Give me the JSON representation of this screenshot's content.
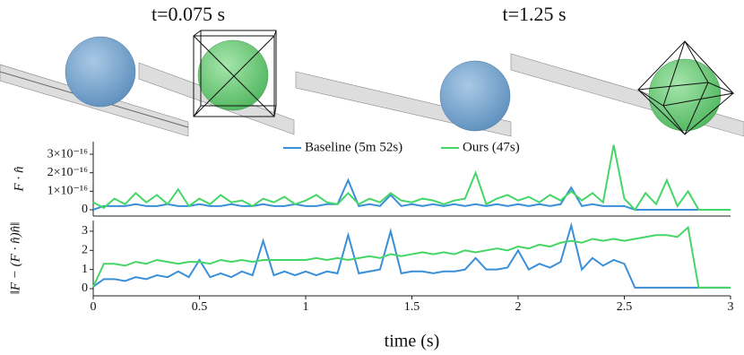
{
  "panels": [
    {
      "caption": "t=0.075 s"
    },
    {
      "caption": "t=1.25 s"
    }
  ],
  "chart_data": [
    {
      "type": "line",
      "ylabel": "F · n̂",
      "x": [
        0,
        0.05,
        0.1,
        0.15,
        0.2,
        0.25,
        0.3,
        0.35,
        0.4,
        0.45,
        0.5,
        0.55,
        0.6,
        0.65,
        0.7,
        0.75,
        0.8,
        0.85,
        0.9,
        0.95,
        1,
        1.05,
        1.1,
        1.15,
        1.2,
        1.25,
        1.3,
        1.35,
        1.4,
        1.45,
        1.5,
        1.55,
        1.6,
        1.65,
        1.7,
        1.75,
        1.8,
        1.85,
        1.9,
        1.95,
        2,
        2.05,
        2.1,
        2.15,
        2.2,
        2.25,
        2.3,
        2.35,
        2.4,
        2.45,
        2.5,
        2.55,
        2.6,
        2.65,
        2.7,
        2.75,
        2.8,
        2.85,
        2.9,
        2.95,
        3
      ],
      "xlim": [
        0,
        3
      ],
      "ylim": [
        -3.4e-17,
        3.68e-16
      ],
      "yticks": [
        0,
        {
          "value": 1e-16,
          "label": "1×10⁻¹⁶"
        },
        {
          "value": 2e-16,
          "label": "2×10⁻¹⁶"
        },
        {
          "value": 3e-16,
          "label": "3×10⁻¹⁶"
        }
      ],
      "series": [
        {
          "name": "Baseline (5m 52s)",
          "color": "#3a8fd9",
          "values": [
            0,
            2e-17,
            2e-17,
            2e-17,
            3e-17,
            2e-17,
            2e-17,
            3e-17,
            2e-17,
            2e-17,
            3e-17,
            2e-17,
            2e-17,
            3e-17,
            2e-17,
            2e-17,
            3e-17,
            2e-17,
            2e-17,
            3e-17,
            2e-17,
            2e-17,
            3e-17,
            3e-17,
            1.6e-16,
            2e-17,
            3e-17,
            2e-17,
            8e-17,
            2e-17,
            3e-17,
            2e-17,
            3e-17,
            2e-17,
            3e-17,
            2e-17,
            3e-17,
            2e-17,
            3e-17,
            2e-17,
            3e-17,
            2e-17,
            3e-17,
            2e-17,
            3e-17,
            1.2e-16,
            2e-17,
            3e-17,
            2e-17,
            2e-17,
            2e-17,
            0,
            0,
            0,
            0,
            0,
            0,
            0,
            0,
            0,
            0
          ]
        },
        {
          "name": "Ours (47s)",
          "color": "#46d667",
          "values": [
            4e-17,
            1e-17,
            6e-17,
            3e-17,
            9e-17,
            4e-17,
            8e-17,
            3e-17,
            1.1e-16,
            2e-17,
            6e-17,
            3e-17,
            8e-17,
            4e-17,
            5e-17,
            2e-17,
            6e-17,
            4e-17,
            7e-17,
            3e-17,
            5e-17,
            8e-17,
            4e-17,
            3e-17,
            9e-17,
            3e-17,
            6e-17,
            4e-17,
            9e-17,
            5e-17,
            4e-17,
            6e-17,
            5e-17,
            3e-17,
            5e-17,
            6e-17,
            2e-16,
            3e-17,
            6e-17,
            8e-17,
            5e-17,
            7e-17,
            4e-17,
            8e-17,
            5e-17,
            1e-16,
            5e-17,
            9e-17,
            4e-17,
            3.5e-16,
            6e-17,
            0,
            9e-17,
            3e-17,
            1.6e-16,
            2e-17,
            1e-16,
            0,
            0,
            0,
            0
          ]
        }
      ]
    },
    {
      "type": "line",
      "ylabel": "‖F − (F · n̂)n̂‖",
      "xlabel": "time (s)",
      "x": [
        0,
        0.05,
        0.1,
        0.15,
        0.2,
        0.25,
        0.3,
        0.35,
        0.4,
        0.45,
        0.5,
        0.55,
        0.6,
        0.65,
        0.7,
        0.75,
        0.8,
        0.85,
        0.9,
        0.95,
        1,
        1.05,
        1.1,
        1.15,
        1.2,
        1.25,
        1.3,
        1.35,
        1.4,
        1.45,
        1.5,
        1.55,
        1.6,
        1.65,
        1.7,
        1.75,
        1.8,
        1.85,
        1.9,
        1.95,
        2,
        2.05,
        2.1,
        2.15,
        2.2,
        2.25,
        2.3,
        2.35,
        2.4,
        2.45,
        2.5,
        2.55,
        2.6,
        2.65,
        2.7,
        2.75,
        2.8,
        2.85,
        2.9,
        2.95,
        3
      ],
      "xlim": [
        0,
        3
      ],
      "ylim": [
        -0.375,
        3.56
      ],
      "xticks": [
        0,
        0.5,
        1,
        1.5,
        2,
        2.5,
        3
      ],
      "yticks": [
        0,
        1,
        2,
        3
      ],
      "series": [
        {
          "name": "Baseline (5m 52s)",
          "color": "#3a8fd9",
          "values": [
            0.1,
            0.5,
            0.5,
            0.4,
            0.6,
            0.5,
            0.7,
            0.6,
            0.9,
            0.6,
            1.5,
            0.6,
            0.8,
            0.6,
            0.9,
            0.7,
            2.5,
            0.7,
            0.9,
            0.7,
            0.9,
            0.7,
            0.9,
            0.8,
            2.8,
            0.8,
            0.9,
            1,
            3,
            0.8,
            0.9,
            0.9,
            0.8,
            0.9,
            0.9,
            1,
            1.6,
            1,
            1,
            1.1,
            2,
            1,
            1.3,
            1.1,
            1.4,
            3.3,
            1,
            1.6,
            1.2,
            1.5,
            1.3,
            0.05,
            0.05,
            0.05,
            0.05,
            0.05,
            0.05,
            0.05,
            0.05,
            0.05,
            0.05
          ]
        },
        {
          "name": "Ours (47s)",
          "color": "#46d667",
          "values": [
            0.1,
            1.3,
            1.3,
            1.2,
            1.4,
            1.3,
            1.5,
            1.4,
            1.3,
            1.4,
            1.4,
            1.3,
            1.5,
            1.4,
            1.5,
            1.4,
            1.5,
            1.5,
            1.5,
            1.5,
            1.5,
            1.6,
            1.5,
            1.6,
            1.5,
            1.6,
            1.7,
            1.6,
            1.8,
            1.7,
            1.8,
            1.9,
            1.8,
            1.9,
            1.8,
            2,
            1.9,
            2,
            2.1,
            2,
            2.2,
            2.1,
            2.3,
            2.2,
            2.4,
            2.5,
            2.4,
            2.6,
            2.5,
            2.6,
            2.5,
            2.6,
            2.7,
            2.8,
            2.8,
            2.7,
            3.2,
            0.05,
            0.05,
            0.05,
            0.05
          ]
        }
      ]
    }
  ]
}
